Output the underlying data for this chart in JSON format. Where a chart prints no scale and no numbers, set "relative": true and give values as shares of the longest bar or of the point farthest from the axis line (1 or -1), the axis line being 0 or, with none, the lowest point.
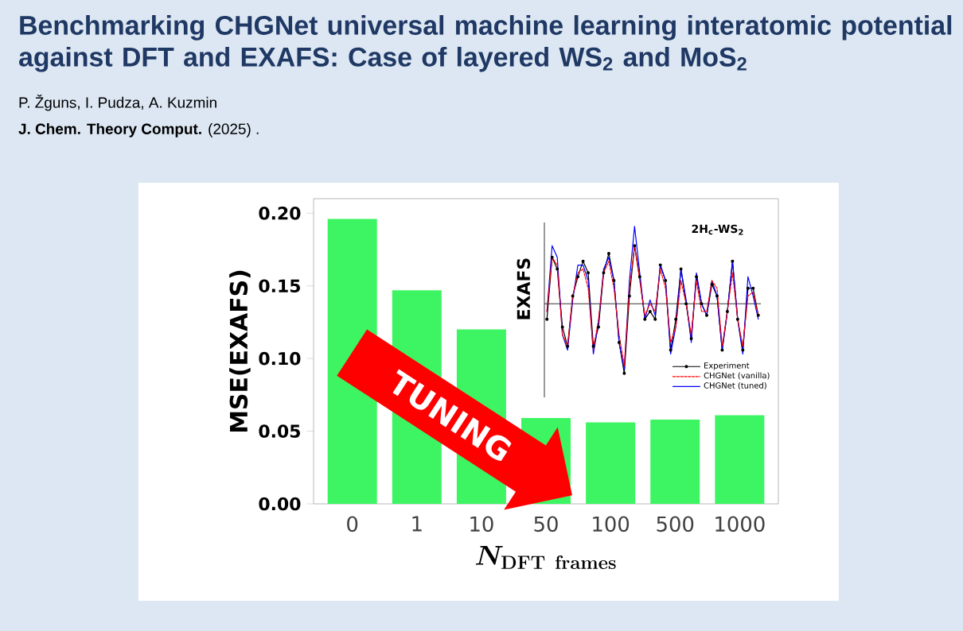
{
  "chart_data": [
    {
      "type": "bar",
      "title": "Benchmarking CHGNet universal machine learning interatomic potential against DFT and EXAFS: Case of layered WS$_{2}$ and MoS$_{2}$",
      "xlabel": "N_{\\mathbf{DFT\\ frames}}",
      "ylabel": "MSE(EXAFS)",
      "categories": [
        "0",
        "1",
        "10",
        "50",
        "100",
        "500",
        "1000"
      ],
      "values": [
        0.196,
        0.147,
        0.12,
        0.059,
        0.056,
        0.058,
        0.061
      ],
      "color": "#3df562",
      "ylim": [
        0,
        0.21
      ],
      "yticks": [
        {
          "value": 0,
          "label": "0.00"
        },
        {
          "value": 0.05,
          "label": "0.05"
        },
        {
          "value": 0.1,
          "label": "0.10"
        },
        {
          "value": 0.15,
          "label": "0.15"
        },
        {
          "value": 0.2,
          "label": "0.20"
        }
      ],
      "annotations": [
        "P. Žguns, I. Pudza, A. Kuzmin",
        "**J. Chem. Theory Comput.** (2025) .",
        "TUNING"
      ]
    },
    {
      "type": "line",
      "relative": true,
      "title": "2H$_{c}$-WS$_{2}$",
      "ylabel": "EXAFS",
      "legend": "bottom right",
      "categories": [
        null,
        null,
        null,
        null,
        null,
        null,
        null,
        null,
        null,
        null,
        null,
        null,
        null,
        null,
        null,
        null,
        null,
        null,
        null,
        null,
        null,
        null,
        null,
        null,
        null,
        null,
        null,
        null,
        null,
        null,
        null,
        null,
        null,
        null,
        null,
        null,
        null,
        null,
        null,
        null,
        null,
        null
      ],
      "series": [
        {
          "name": "Experiment",
          "color": "#000000",
          "marker": "circle",
          "line_style": "solid",
          "values": [
            -0.2,
            0.6,
            0.45,
            -0.3,
            -0.55,
            0.1,
            0.35,
            0.55,
            0.4,
            -0.55,
            -0.3,
            0.4,
            0.65,
            0.3,
            -0.5,
            -0.9,
            0.1,
            0.75,
            0.35,
            -0.2,
            -0.1,
            -0.2,
            0.5,
            0.3,
            -0.6,
            -0.2,
            0.45,
            0.0,
            -0.45,
            0.35,
            0.0,
            -0.15,
            0.25,
            0.1,
            -0.6,
            -0.1,
            0.55,
            -0.2,
            -0.6,
            0.2,
            0.2,
            -0.15
          ]
        },
        {
          "name": "CHGNet (vanilla)",
          "color": "#ff0000",
          "marker": "none",
          "line_style": "dashed",
          "values": [
            -0.1,
            0.6,
            0.5,
            -0.4,
            -0.55,
            0.1,
            0.4,
            0.45,
            0.2,
            -0.6,
            -0.2,
            0.4,
            0.55,
            0.2,
            -0.4,
            -0.8,
            0.2,
            0.75,
            0.3,
            -0.15,
            0.0,
            -0.1,
            0.45,
            0.2,
            -0.5,
            -0.3,
            0.3,
            0.0,
            -0.4,
            0.3,
            -0.1,
            -0.1,
            0.3,
            0.2,
            -0.55,
            -0.1,
            0.4,
            -0.2,
            -0.55,
            0.1,
            0.15,
            -0.15
          ]
        },
        {
          "name": "CHGNet (tuned)",
          "color": "#0000ff",
          "marker": "none",
          "line_style": "solid",
          "values": [
            -0.1,
            0.75,
            0.6,
            -0.4,
            -0.6,
            0.05,
            0.5,
            0.5,
            0.3,
            -0.65,
            -0.25,
            0.45,
            0.6,
            0.3,
            -0.5,
            -0.85,
            0.3,
            1.0,
            0.4,
            -0.2,
            0.05,
            -0.15,
            0.5,
            0.3,
            -0.65,
            -0.3,
            0.45,
            0.05,
            -0.5,
            0.4,
            0.0,
            -0.15,
            0.3,
            0.1,
            -0.6,
            -0.1,
            0.55,
            -0.2,
            -0.65,
            0.35,
            0.1,
            -0.2
          ]
        }
      ]
    }
  ]
}
